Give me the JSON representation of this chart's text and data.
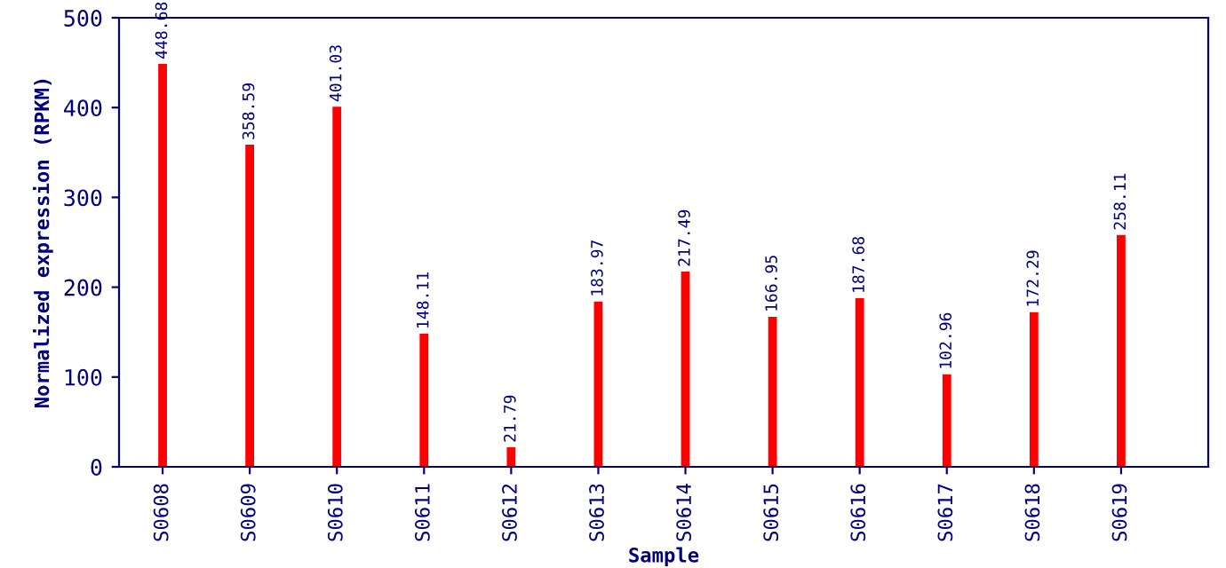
{
  "chart_data": {
    "type": "bar",
    "xlabel": "Sample",
    "ylabel": "Normalized expression (RPKM)",
    "categories": [
      "S0608",
      "S0609",
      "S0610",
      "S0611",
      "S0612",
      "S0613",
      "S0614",
      "S0615",
      "S0616",
      "S0617",
      "S0618",
      "S0619"
    ],
    "values": [
      448.68,
      358.59,
      401.03,
      148.11,
      21.79,
      183.97,
      217.49,
      166.95,
      187.68,
      102.96,
      172.29,
      258.11
    ],
    "color": "#ff0000",
    "ylim": [
      0,
      500
    ],
    "yticks": [
      0,
      100,
      200,
      300,
      400,
      500
    ],
    "grid": false,
    "data_labels": true
  }
}
